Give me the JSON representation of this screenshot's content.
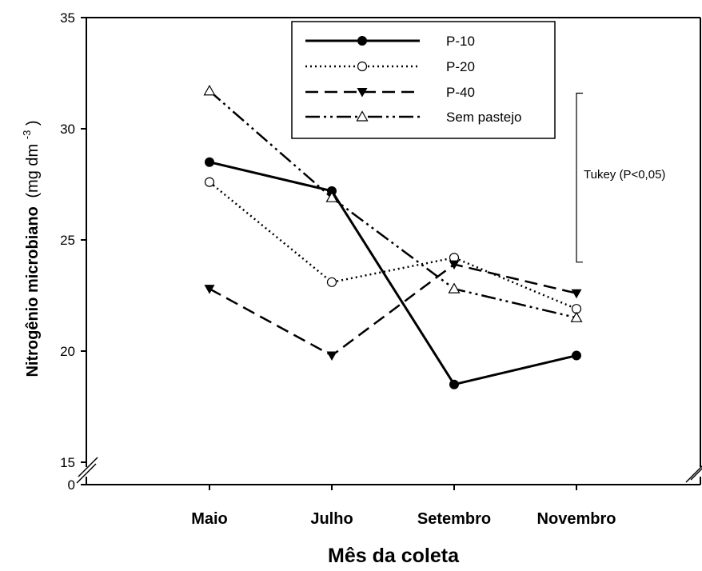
{
  "chart_data": {
    "type": "line",
    "xlabel": "Mês da coleta",
    "ylabel_main": "Nitrogênio microbiano",
    "ylabel_unit_prefix": "(mg dm",
    "ylabel_unit_exp": "-3",
    "ylabel_unit_suffix": ")",
    "categories": [
      "Maio",
      "Julho",
      "Setembro",
      "Novembro"
    ],
    "yticks": [
      15,
      20,
      25,
      30,
      35
    ],
    "y_axis_break": true,
    "y_zero_label": "0",
    "ylim": [
      15,
      35
    ],
    "series": [
      {
        "name": "P-10",
        "values": [
          28.5,
          27.2,
          18.5,
          19.8
        ],
        "style": "solid",
        "marker": "filled-circle"
      },
      {
        "name": "P-20",
        "values": [
          27.6,
          23.1,
          24.2,
          21.9
        ],
        "style": "dotted",
        "marker": "open-circle"
      },
      {
        "name": "P-40",
        "values": [
          22.8,
          19.8,
          23.9,
          22.6
        ],
        "style": "dashed",
        "marker": "filled-triangle-down"
      },
      {
        "name": "Sem pastejo",
        "values": [
          31.7,
          26.9,
          22.8,
          21.5
        ],
        "style": "dash-dot-dot",
        "marker": "open-triangle-up"
      }
    ],
    "annotation": {
      "label": "Tukey (P<0,05)",
      "y_top": 31.6,
      "y_bottom": 24.0
    },
    "legend_position": "top-center",
    "grid": false
  }
}
